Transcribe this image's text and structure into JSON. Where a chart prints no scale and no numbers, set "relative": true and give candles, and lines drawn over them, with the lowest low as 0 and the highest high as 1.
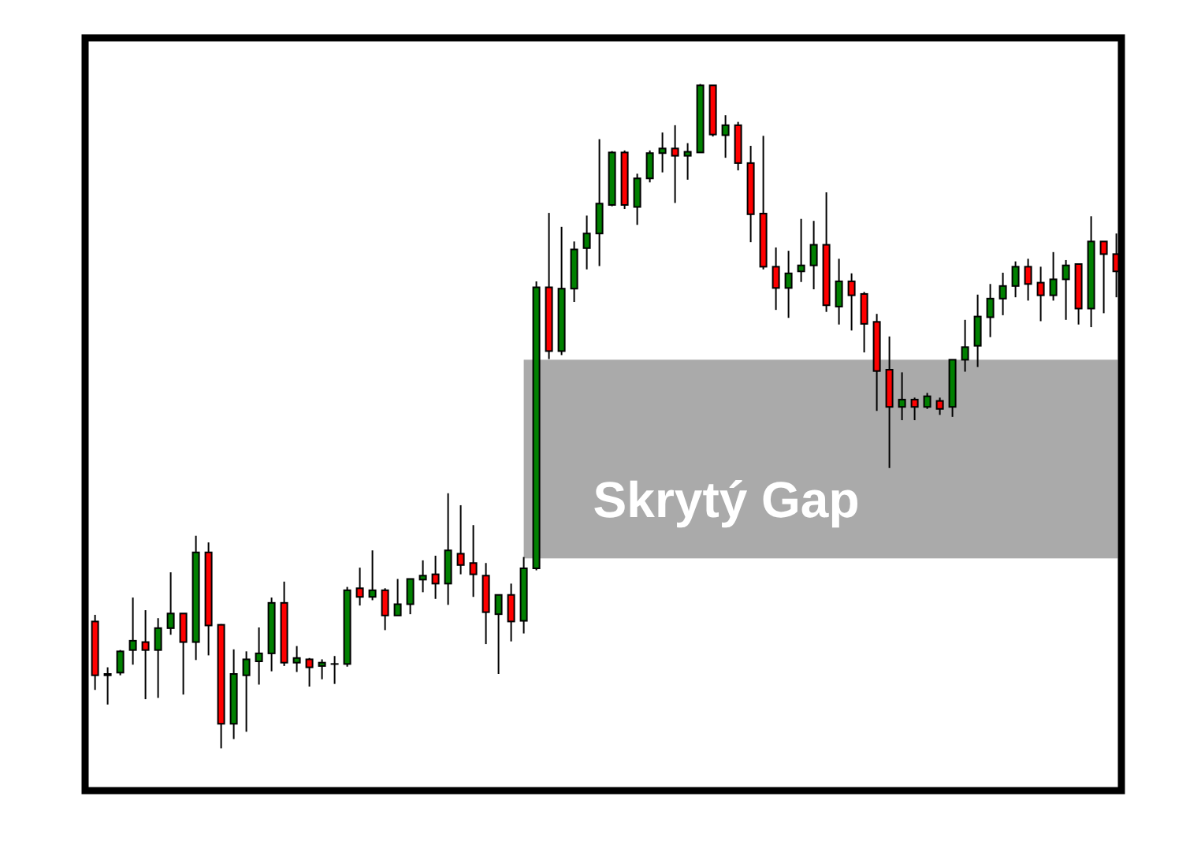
{
  "chart_data": {
    "type": "candlestick",
    "relative": true,
    "categories": [
      null,
      null,
      null,
      null,
      null,
      null,
      null,
      null,
      null,
      null,
      null,
      null,
      null,
      null,
      null,
      null,
      null,
      null,
      null,
      null,
      null,
      null,
      null,
      null,
      null,
      null,
      null,
      null,
      null,
      null,
      null,
      null,
      null,
      null,
      null,
      null,
      null,
      null,
      null,
      null,
      null,
      null,
      null,
      null,
      null,
      null,
      null,
      null,
      null,
      null,
      null,
      null,
      null,
      null,
      null,
      null,
      null,
      null,
      null,
      null,
      null,
      null,
      null,
      null,
      null,
      null,
      null,
      null,
      null,
      null,
      null,
      null,
      null,
      null,
      null,
      null,
      null,
      null,
      null,
      null,
      null,
      null
    ],
    "ohlc": [
      [
        0.191,
        0.201,
        0.088,
        0.11
      ],
      [
        0.11,
        0.122,
        0.066,
        0.112
      ],
      [
        0.114,
        0.148,
        0.11,
        0.146
      ],
      [
        0.148,
        0.227,
        0.126,
        0.162
      ],
      [
        0.16,
        0.208,
        0.074,
        0.148
      ],
      [
        0.148,
        0.196,
        0.076,
        0.181
      ],
      [
        0.181,
        0.265,
        0.171,
        0.203
      ],
      [
        0.203,
        0.203,
        0.081,
        0.16
      ],
      [
        0.16,
        0.32,
        0.133,
        0.295
      ],
      [
        0.295,
        0.31,
        0.14,
        0.185
      ],
      [
        0.186,
        0.187,
        0,
        0.037
      ],
      [
        0.037,
        0.149,
        0.014,
        0.112
      ],
      [
        0.11,
        0.146,
        0.025,
        0.134
      ],
      [
        0.131,
        0.182,
        0.096,
        0.143
      ],
      [
        0.143,
        0.227,
        0.116,
        0.219
      ],
      [
        0.219,
        0.251,
        0.124,
        0.129
      ],
      [
        0.129,
        0.154,
        0.115,
        0.136
      ],
      [
        0.134,
        0.136,
        0.093,
        0.122
      ],
      [
        0.124,
        0.134,
        0.104,
        0.129
      ],
      [
        0.127,
        0.139,
        0.097,
        0.127
      ],
      [
        0.127,
        0.243,
        0.123,
        0.238
      ],
      [
        0.241,
        0.272,
        0.215,
        0.228
      ],
      [
        0.228,
        0.298,
        0.223,
        0.238
      ],
      [
        0.238,
        0.241,
        0.178,
        0.2
      ],
      [
        0.2,
        0.255,
        0.2,
        0.217
      ],
      [
        0.217,
        0.255,
        0.202,
        0.255
      ],
      [
        0.254,
        0.283,
        0.235,
        0.26
      ],
      [
        0.262,
        0.29,
        0.225,
        0.248
      ],
      [
        0.248,
        0.384,
        0.216,
        0.298
      ],
      [
        0.293,
        0.366,
        0.262,
        0.276
      ],
      [
        0.279,
        0.336,
        0.228,
        0.262
      ],
      [
        0.26,
        0.279,
        0.157,
        0.205
      ],
      [
        0.202,
        0.231,
        0.112,
        0.231
      ],
      [
        0.231,
        0.248,
        0.161,
        0.191
      ],
      [
        0.192,
        0.288,
        0.173,
        0.271
      ],
      [
        0.271,
        0.703,
        0.268,
        0.694
      ],
      [
        0.694,
        0.806,
        0.586,
        0.598
      ],
      [
        0.598,
        0.785,
        0.592,
        0.692
      ],
      [
        0.692,
        0.763,
        0.672,
        0.751
      ],
      [
        0.753,
        0.802,
        0.721,
        0.775
      ],
      [
        0.775,
        0.917,
        0.726,
        0.82
      ],
      [
        0.818,
        0.899,
        0.816,
        0.897
      ],
      [
        0.897,
        0.9,
        0.812,
        0.818
      ],
      [
        0.815,
        0.865,
        0.788,
        0.858
      ],
      [
        0.858,
        0.9,
        0.852,
        0.896
      ],
      [
        0.896,
        0.927,
        0.867,
        0.903
      ],
      [
        0.903,
        0.938,
        0.821,
        0.892
      ],
      [
        0.892,
        0.911,
        0.856,
        0.898
      ],
      [
        0.897,
        1,
        0.897,
        0.998
      ],
      [
        0.998,
        0.998,
        0.921,
        0.924
      ],
      [
        0.923,
        0.953,
        0.889,
        0.938
      ],
      [
        0.938,
        0.943,
        0.87,
        0.881
      ],
      [
        0.881,
        0.907,
        0.762,
        0.804
      ],
      [
        0.805,
        0.922,
        0.721,
        0.725
      ],
      [
        0.725,
        0.754,
        0.66,
        0.693
      ],
      [
        0.693,
        0.749,
        0.648,
        0.715
      ],
      [
        0.718,
        0.797,
        0.702,
        0.727
      ],
      [
        0.727,
        0.794,
        0.691,
        0.758
      ],
      [
        0.758,
        0.837,
        0.657,
        0.667
      ],
      [
        0.665,
        0.737,
        0.638,
        0.703
      ],
      [
        0.703,
        0.715,
        0.629,
        0.682
      ],
      [
        0.684,
        0.687,
        0.596,
        0.639
      ],
      [
        0.642,
        0.654,
        0.508,
        0.568
      ],
      [
        0.57,
        0.62,
        0.422,
        0.514
      ],
      [
        0.514,
        0.566,
        0.494,
        0.525
      ],
      [
        0.525,
        0.528,
        0.494,
        0.514
      ],
      [
        0.514,
        0.535,
        0.511,
        0.53
      ],
      [
        0.523,
        0.528,
        0.502,
        0.511
      ],
      [
        0.514,
        0.585,
        0.499,
        0.585
      ],
      [
        0.585,
        0.645,
        0.567,
        0.604
      ],
      [
        0.606,
        0.683,
        0.574,
        0.65
      ],
      [
        0.649,
        0.699,
        0.619,
        0.677
      ],
      [
        0.677,
        0.716,
        0.652,
        0.696
      ],
      [
        0.696,
        0.733,
        0.679,
        0.725
      ],
      [
        0.725,
        0.737,
        0.674,
        0.699
      ],
      [
        0.701,
        0.725,
        0.643,
        0.682
      ],
      [
        0.682,
        0.747,
        0.674,
        0.706
      ],
      [
        0.706,
        0.735,
        0.645,
        0.727
      ],
      [
        0.729,
        0.729,
        0.638,
        0.662
      ],
      [
        0.662,
        0.801,
        0.634,
        0.763
      ],
      [
        0.763,
        0.763,
        0.655,
        0.744
      ],
      [
        0.744,
        0.775,
        0.679,
        0.718
      ]
    ],
    "colors": [
      "#ff0000",
      "#008000",
      "#008000",
      "#008000",
      "#ff0000",
      "#008000",
      "#008000",
      "#ff0000",
      "#008000",
      "#ff0000",
      "#ff0000",
      "#008000",
      "#008000",
      "#008000",
      "#008000",
      "#ff0000",
      "#008000",
      "#ff0000",
      "#008000",
      "#008000",
      "#008000",
      "#ff0000",
      "#008000",
      "#ff0000",
      "#008000",
      "#008000",
      "#008000",
      "#ff0000",
      "#008000",
      "#ff0000",
      "#ff0000",
      "#ff0000",
      "#008000",
      "#ff0000",
      "#008000",
      "#008000",
      "#ff0000",
      "#008000",
      "#008000",
      "#008000",
      "#008000",
      "#008000",
      "#ff0000",
      "#008000",
      "#008000",
      "#008000",
      "#ff0000",
      "#008000",
      "#008000",
      "#ff0000",
      "#008000",
      "#ff0000",
      "#ff0000",
      "#ff0000",
      "#ff0000",
      "#008000",
      "#008000",
      "#008000",
      "#ff0000",
      "#008000",
      "#ff0000",
      "#ff0000",
      "#ff0000",
      "#ff0000",
      "#008000",
      "#ff0000",
      "#008000",
      "#ff0000",
      "#008000",
      "#008000",
      "#008000",
      "#008000",
      "#008000",
      "#008000",
      "#ff0000",
      "#ff0000",
      "#008000",
      "#008000",
      "#ff0000",
      "#008000",
      "#ff0000",
      "#ff0000"
    ],
    "bands": [
      {
        "axis": "y",
        "from": 0.286,
        "to": 0.585,
        "label": "Skrytý Gap",
        "color": "#aaaaaa"
      }
    ]
  }
}
